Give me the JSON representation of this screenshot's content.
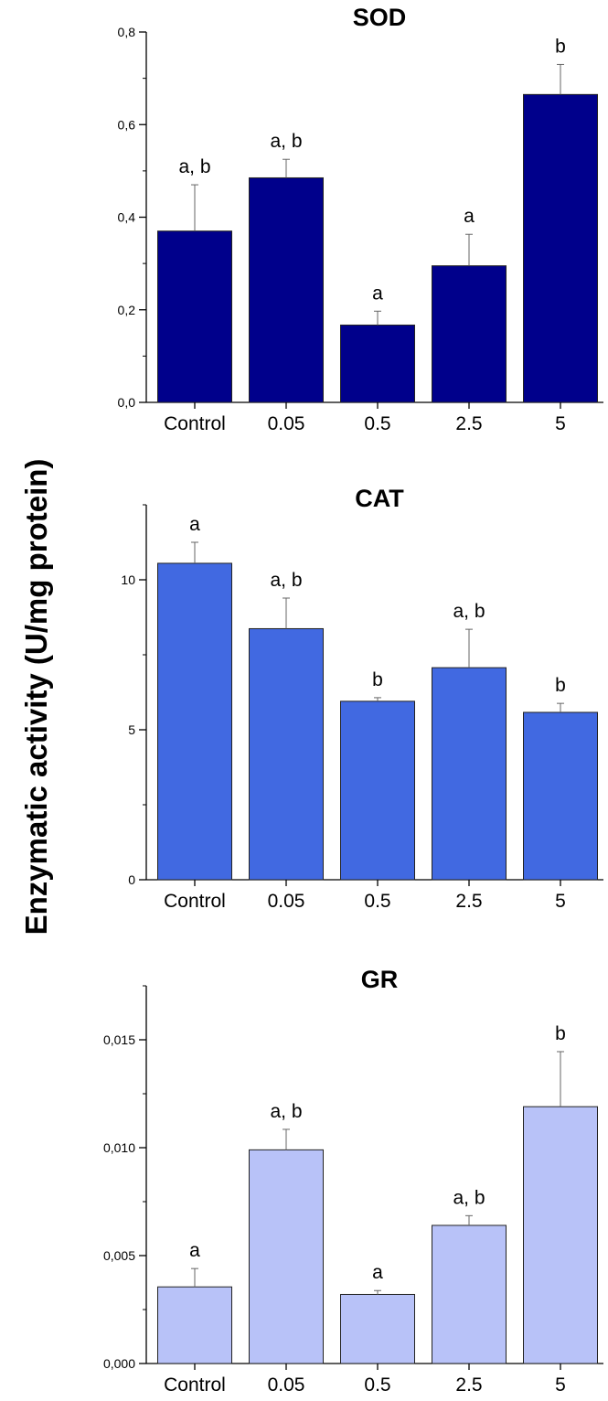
{
  "figure": {
    "ylabel": "Enzymatic activity (U/mg protein)"
  },
  "chart_data": [
    {
      "type": "bar",
      "title": "SOD",
      "categories": [
        "Control",
        "0.05",
        "0.5",
        "2.5",
        "5"
      ],
      "values": [
        0.37,
        0.485,
        0.167,
        0.295,
        0.665
      ],
      "errors": [
        0.1,
        0.04,
        0.03,
        0.068,
        0.065
      ],
      "significance": [
        "a, b",
        "a, b",
        "a",
        "a",
        "b"
      ],
      "ylim": [
        0,
        0.8
      ],
      "yticks": [
        0,
        0.2,
        0.4,
        0.6,
        0.8
      ],
      "ytick_labels": [
        "0,0",
        "0,2",
        "0,4",
        "0,6",
        "0,8"
      ],
      "color": "#00008B"
    },
    {
      "type": "bar",
      "title": "CAT",
      "categories": [
        "Control",
        "0.05",
        "0.5",
        "2.5",
        "5"
      ],
      "values": [
        10.55,
        8.37,
        5.95,
        7.07,
        5.58
      ],
      "errors": [
        0.7,
        1.02,
        0.12,
        1.28,
        0.3
      ],
      "significance": [
        "a",
        "a, b",
        "b",
        "a, b",
        "b"
      ],
      "ylim": [
        0,
        12.5
      ],
      "yticks": [
        0,
        5,
        10
      ],
      "ytick_labels": [
        "0",
        "5",
        "10"
      ],
      "color": "#4169E1"
    },
    {
      "type": "bar",
      "title": "GR",
      "categories": [
        "Control",
        "0.05",
        "0.5",
        "2.5",
        "5"
      ],
      "values": [
        0.00355,
        0.0099,
        0.0032,
        0.0064,
        0.0119
      ],
      "errors": [
        0.00085,
        0.00095,
        0.00018,
        0.00045,
        0.00255
      ],
      "significance": [
        "a",
        "a, b",
        "a",
        "a, b",
        "b"
      ],
      "ylim": [
        0,
        0.0175
      ],
      "yticks": [
        0,
        0.005,
        0.01,
        0.015
      ],
      "ytick_labels": [
        "0,000",
        "0,005",
        "0,010",
        "0,015"
      ],
      "color": "#B8C2F8"
    }
  ]
}
